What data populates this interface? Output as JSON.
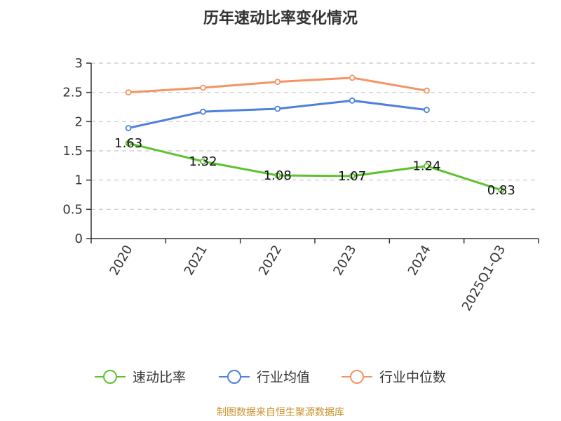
{
  "chart_data": {
    "type": "line",
    "title": "历年速动比率变化情况",
    "categories": [
      "2020",
      "2021",
      "2022",
      "2023",
      "2024",
      "2025Q1-Q3"
    ],
    "ylim": [
      0,
      3
    ],
    "yticks": [
      "0",
      "0.5",
      "1",
      "1.5",
      "2",
      "2.5",
      "3"
    ],
    "grid": true,
    "legend_position": "bottom",
    "series": [
      {
        "name": "速动比率",
        "color": "#5cc330",
        "values": [
          1.63,
          1.32,
          1.08,
          1.07,
          1.24,
          0.83
        ],
        "labels": [
          "1.63",
          "1.32",
          "1.08",
          "1.07",
          "1.24",
          "0.83"
        ]
      },
      {
        "name": "行业均值",
        "color": "#4f81dc",
        "values": [
          1.89,
          2.17,
          2.22,
          2.36,
          2.2,
          null
        ]
      },
      {
        "name": "行业中位数",
        "color": "#f59362",
        "values": [
          2.5,
          2.58,
          2.68,
          2.75,
          2.53,
          null
        ]
      }
    ],
    "source": "制图数据来自恒生聚源数据库"
  }
}
